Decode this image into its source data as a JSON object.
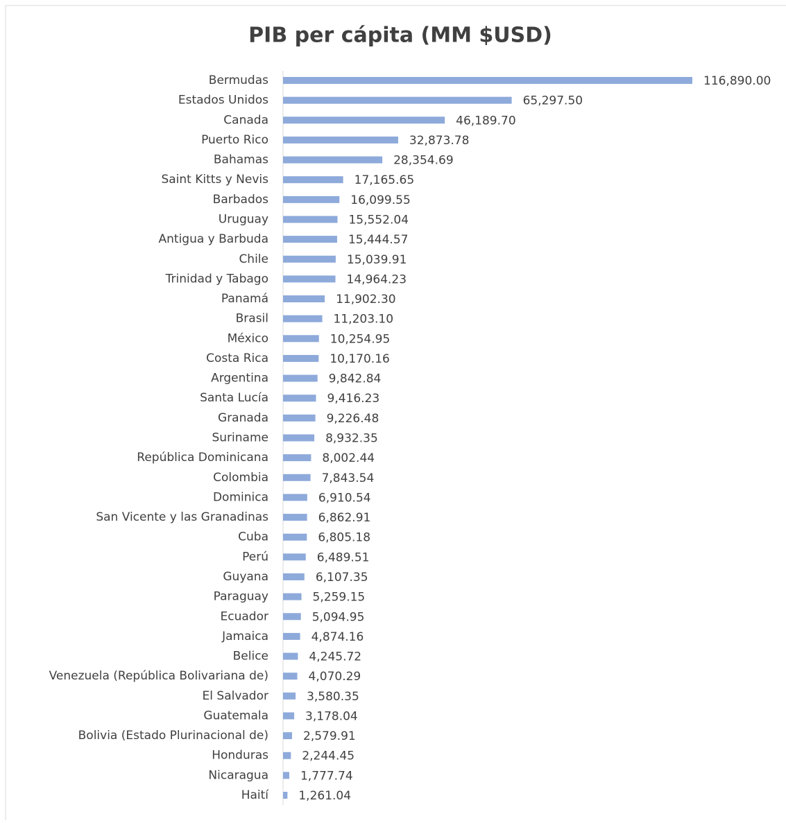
{
  "chart_data": {
    "type": "barh",
    "title": "PIB per cápita (MM $USD)",
    "color": "#8eaadb",
    "categories": [
      "Bermudas",
      "Estados Unidos",
      "Canada",
      "Puerto Rico",
      "Bahamas",
      "Saint Kitts y Nevis",
      "Barbados",
      "Uruguay",
      "Antigua y Barbuda",
      "Chile",
      "Trinidad y Tabago",
      "Panamá",
      "Brasil",
      "México",
      "Costa Rica",
      "Argentina",
      "Santa Lucía",
      "Granada",
      "Suriname",
      "República Dominicana",
      "Colombia",
      "Dominica",
      "San Vicente y las Granadinas",
      "Cuba",
      "Perú",
      "Guyana",
      "Paraguay",
      "Ecuador",
      "Jamaica",
      "Belice",
      "Venezuela (República Bolivariana de)",
      "El Salvador",
      "Guatemala",
      "Bolivia (Estado Plurinacional de)",
      "Honduras",
      "Nicaragua",
      "Haití"
    ],
    "values": [
      116890.0,
      65297.5,
      46189.7,
      32873.78,
      28354.69,
      17165.65,
      16099.55,
      15552.04,
      15444.57,
      15039.91,
      14964.23,
      11902.3,
      11203.1,
      10254.95,
      10170.16,
      9842.84,
      9416.23,
      9226.48,
      8932.35,
      8002.44,
      7843.54,
      6910.54,
      6862.91,
      6805.18,
      6489.51,
      6107.35,
      5259.15,
      5094.95,
      4874.16,
      4245.72,
      4070.29,
      3580.35,
      3178.04,
      2579.91,
      2244.45,
      1777.74,
      1261.04
    ],
    "value_labels": [
      "116,890.00",
      "65,297.50",
      "46,189.70",
      "32,873.78",
      "28,354.69",
      "17,165.65",
      "16,099.55",
      "15,552.04",
      "15,444.57",
      "15,039.91",
      "14,964.23",
      "11,902.30",
      "11,203.10",
      "10,254.95",
      "10,170.16",
      "9,842.84",
      "9,416.23",
      "9,226.48",
      "8,932.35",
      "8,002.44",
      "7,843.54",
      "6,910.54",
      "6,862.91",
      "6,805.18",
      "6,489.51",
      "6,107.35",
      "5,259.15",
      "5,094.95",
      "4,874.16",
      "4,245.72",
      "4,070.29",
      "3,580.35",
      "3,178.04",
      "2,579.91",
      "2,244.45",
      "1,777.74",
      "1,261.04"
    ]
  }
}
